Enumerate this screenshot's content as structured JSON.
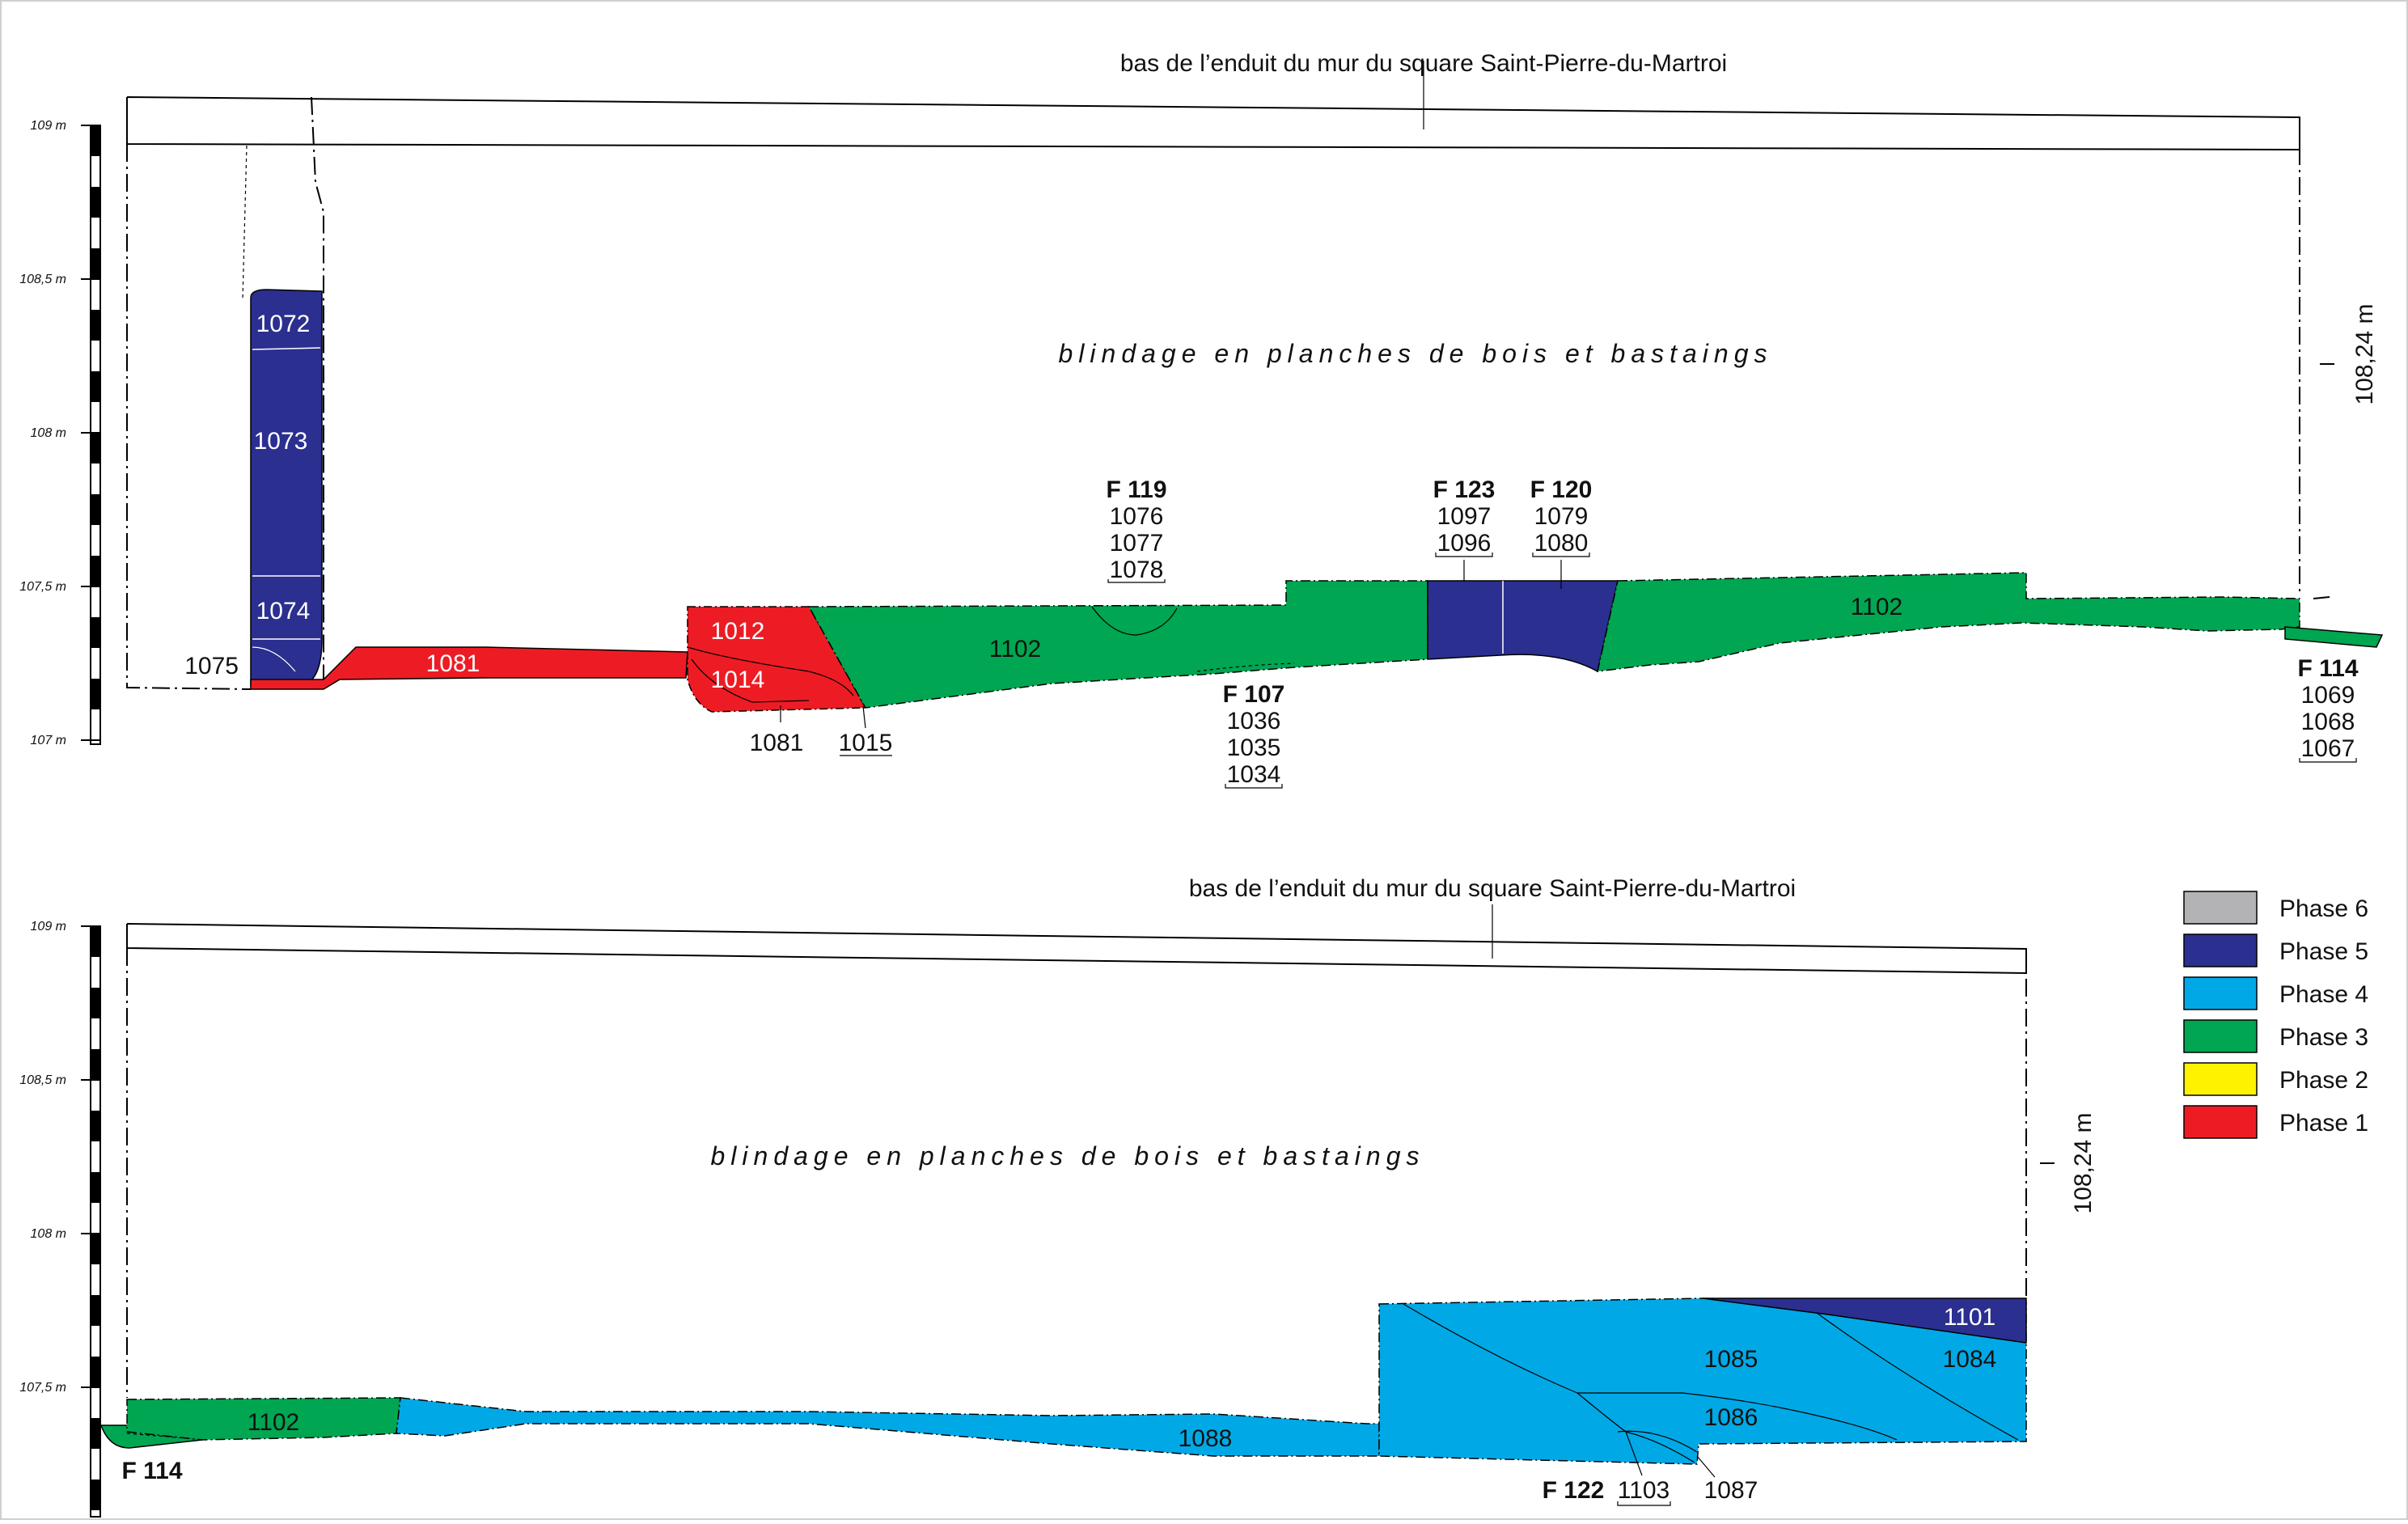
{
  "colors": {
    "phase6": "#b3b3b5",
    "phase5": "#2b2f8f",
    "phase4": "#00a9e6",
    "phase3": "#00a651",
    "phase2": "#fff200",
    "phase1": "#ed1c24"
  },
  "scale_labels": [
    "109 m",
    "108,5 m",
    "108 m",
    "107,5 m",
    "107 m"
  ],
  "top_section": {
    "title": "bas de l’enduit du mur du square Saint-Pierre-du-Martroi",
    "shoring": "blindage en planches de bois et bastaings",
    "elevation": "108,24 m",
    "units": {
      "u1072": "1072",
      "u1073": "1073",
      "u1074": "1074",
      "u1075": "1075",
      "u1081a": "1081",
      "u1012": "1012",
      "u1014": "1014",
      "u1081b": "1081",
      "u1015": "1015",
      "u1102a": "1102",
      "u1102b": "1102"
    },
    "f119": {
      "name": "F 119",
      "l1": "1076",
      "l2": "1077",
      "l3": "1078"
    },
    "f123": {
      "name": "F 123",
      "l1": "1097",
      "l2": "1096"
    },
    "f120": {
      "name": "F 120",
      "l1": "1079",
      "l2": "1080"
    },
    "f107": {
      "name": "F 107",
      "l1": "1036",
      "l2": "1035",
      "l3": "1034"
    },
    "f114": {
      "name": "F 114",
      "l1": "1069",
      "l2": "1068",
      "l3": "1067"
    }
  },
  "bottom_section": {
    "title": "bas de l’enduit du mur du square Saint-Pierre-du-Martroi",
    "shoring": "blindage en planches de bois et bastaings",
    "elevation": "108,24 m",
    "units": {
      "u1102": "1102",
      "u1088": "1088",
      "u1101": "1101",
      "u1085": "1085",
      "u1084": "1084",
      "u1086": "1086",
      "u1103": "1103",
      "u1087": "1087"
    },
    "f114": {
      "name": "F 114"
    },
    "f122": {
      "name": "F 122"
    }
  },
  "legend": [
    {
      "label": "Phase 6",
      "color": "#b3b3b5"
    },
    {
      "label": "Phase 5",
      "color": "#2b2f8f"
    },
    {
      "label": "Phase 4",
      "color": "#00a9e6"
    },
    {
      "label": "Phase 3",
      "color": "#00a651"
    },
    {
      "label": "Phase 2",
      "color": "#fff200"
    },
    {
      "label": "Phase 1",
      "color": "#ed1c24"
    }
  ]
}
